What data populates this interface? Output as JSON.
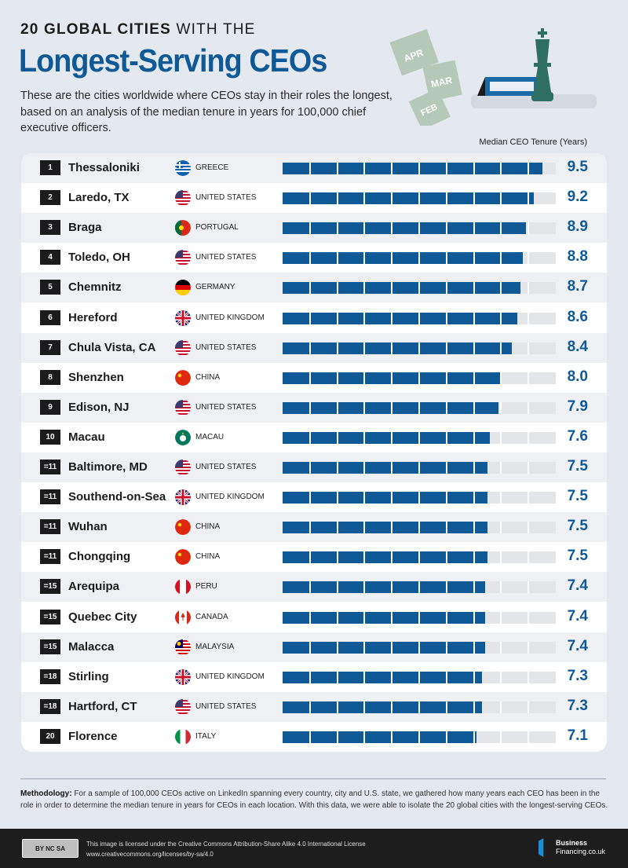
{
  "header": {
    "kicker_bold": "20 GLOBAL CITIES",
    "kicker_light": "WITH THE",
    "title": "Longest-Serving CEOs",
    "intro": "These are the cities worldwide where CEOs stay in their roles the longest, based on an analysis of the median tenure in years for 100,000 chief executive officers.",
    "calendar_pages": [
      "APR",
      "MAR",
      "FEB"
    ]
  },
  "chart_data": {
    "type": "bar",
    "orientation": "horizontal",
    "value_label": "Median CEO Tenure (Years)",
    "xlim": [
      0,
      10
    ],
    "bar_color": "#0f5a96",
    "rows": [
      {
        "rank": "1",
        "city": "Thessaloniki",
        "country": "GREECE",
        "flag": "gr",
        "value": 9.5
      },
      {
        "rank": "2",
        "city": "Laredo, TX",
        "country": "UNITED STATES",
        "flag": "us",
        "value": 9.2
      },
      {
        "rank": "3",
        "city": "Braga",
        "country": "PORTUGAL",
        "flag": "pt",
        "value": 8.9
      },
      {
        "rank": "4",
        "city": "Toledo, OH",
        "country": "UNITED STATES",
        "flag": "us",
        "value": 8.8
      },
      {
        "rank": "5",
        "city": "Chemnitz",
        "country": "GERMANY",
        "flag": "de",
        "value": 8.7
      },
      {
        "rank": "6",
        "city": "Hereford",
        "country": "UNITED KINGDOM",
        "flag": "gb",
        "value": 8.6
      },
      {
        "rank": "7",
        "city": "Chula Vista, CA",
        "country": "UNITED STATES",
        "flag": "us",
        "value": 8.4
      },
      {
        "rank": "8",
        "city": "Shenzhen",
        "country": "CHINA",
        "flag": "cn",
        "value": 8.0
      },
      {
        "rank": "9",
        "city": "Edison, NJ",
        "country": "UNITED STATES",
        "flag": "us",
        "value": 7.9
      },
      {
        "rank": "10",
        "city": "Macau",
        "country": "MACAU",
        "flag": "mo",
        "value": 7.6
      },
      {
        "rank": "=11",
        "city": "Baltimore, MD",
        "country": "UNITED STATES",
        "flag": "us",
        "value": 7.5
      },
      {
        "rank": "=11",
        "city": "Southend-on-Sea",
        "country": "UNITED KINGDOM",
        "flag": "gb",
        "value": 7.5
      },
      {
        "rank": "=11",
        "city": "Wuhan",
        "country": "CHINA",
        "flag": "cn",
        "value": 7.5
      },
      {
        "rank": "=11",
        "city": "Chongqing",
        "country": "CHINA",
        "flag": "cn",
        "value": 7.5
      },
      {
        "rank": "=15",
        "city": "Arequipa",
        "country": "PERU",
        "flag": "pe",
        "value": 7.4
      },
      {
        "rank": "=15",
        "city": "Quebec City",
        "country": "CANADA",
        "flag": "ca",
        "value": 7.4
      },
      {
        "rank": "=15",
        "city": "Malacca",
        "country": "MALAYSIA",
        "flag": "my",
        "value": 7.4
      },
      {
        "rank": "=18",
        "city": "Stirling",
        "country": "UNITED KINGDOM",
        "flag": "gb",
        "value": 7.3
      },
      {
        "rank": "=18",
        "city": "Hartford, CT",
        "country": "UNITED STATES",
        "flag": "us",
        "value": 7.3
      },
      {
        "rank": "20",
        "city": "Florence",
        "country": "ITALY",
        "flag": "it",
        "value": 7.1
      }
    ]
  },
  "methodology": {
    "label": "Methodology:",
    "text": "For a sample of 100,000 CEOs active on LinkedIn spanning every country, city and U.S. state, we gathered how many years each CEO has been in the role in order to determine the median tenure in years for CEOs in each location. With this data, we were able to isolate the 20 global cities with the longest-serving CEOs."
  },
  "footer": {
    "cc_badge": "BY NC SA",
    "license_line": "This image is licensed under the Creative Commons Attribution-Share Alike 4.0 International License",
    "license_url": "www.creativecommons.org/licenses/by-sa/4.0",
    "brand_line1": "Business",
    "brand_line2": "Financing.co.uk"
  }
}
